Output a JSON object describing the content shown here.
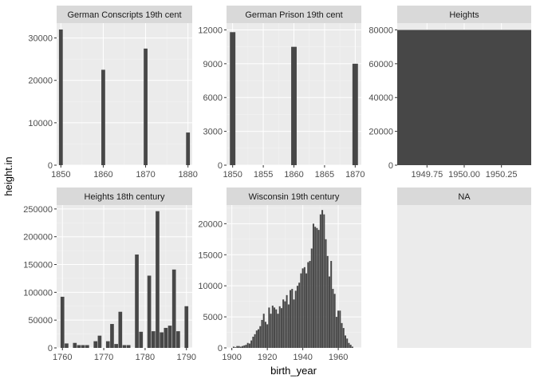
{
  "chart_data": {
    "type": "bar",
    "title": "",
    "xlabel": "birth_year",
    "ylabel": "height.in",
    "grid": true,
    "legend": "none",
    "colors": {
      "bar": "#474747",
      "panel_bg": "#ebebeb",
      "strip_bg": "#d9d9d9",
      "grid_major": "#ffffff",
      "grid_minor": "#f4f4f4"
    },
    "panels": [
      {
        "name": "German Conscripts 19th cent",
        "xlim": [
          1849,
          1881
        ],
        "ylim": [
          0,
          33500
        ],
        "xticks": [
          1850,
          1860,
          1870,
          1880
        ],
        "xtick_labels": [
          "1850",
          "1860",
          "1870",
          "1880"
        ],
        "yticks": [
          0,
          10000,
          20000,
          30000
        ],
        "ytick_labels": [
          "0",
          "10000",
          "20000",
          "30000"
        ],
        "bar_width": 0.9,
        "x": [
          1850,
          1860,
          1870,
          1880
        ],
        "values": [
          32000,
          22500,
          27500,
          7700
        ]
      },
      {
        "name": "German Prison 19th cent",
        "xlim": [
          1849,
          1871
        ],
        "ylim": [
          0,
          12600
        ],
        "xticks": [
          1850,
          1855,
          1860,
          1865,
          1870
        ],
        "xtick_labels": [
          "1850",
          "1855",
          "1860",
          "1865",
          "1870"
        ],
        "yticks": [
          0,
          3000,
          6000,
          9000,
          12000
        ],
        "ytick_labels": [
          "0",
          "3000",
          "6000",
          "9000",
          "12000"
        ],
        "bar_width": 0.9,
        "x": [
          1850,
          1860,
          1870
        ],
        "values": [
          11800,
          10500,
          9000
        ]
      },
      {
        "name": "Heights",
        "xlim": [
          1949.55,
          1950.45
        ],
        "ylim": [
          0,
          84000
        ],
        "xticks": [
          1949.75,
          1950.0,
          1950.25
        ],
        "xtick_labels": [
          "1949.75",
          "1950.00",
          "1950.25"
        ],
        "yticks": [
          0,
          20000,
          40000,
          60000,
          80000
        ],
        "ytick_labels": [
          "0",
          "20000",
          "40000",
          "60000",
          "80000"
        ],
        "bar_width": 0.9,
        "x": [
          1950
        ],
        "values": [
          80000
        ]
      },
      {
        "name": "Heights 18th century",
        "xlim": [
          1758.6,
          1791.4
        ],
        "ylim": [
          0,
          257000
        ],
        "xticks": [
          1760,
          1770,
          1780,
          1790
        ],
        "xtick_labels": [
          "1760",
          "1770",
          "1780",
          "1790"
        ],
        "yticks": [
          0,
          50000,
          100000,
          150000,
          200000,
          250000
        ],
        "ytick_labels": [
          "0",
          "50000",
          "100000",
          "150000",
          "200000",
          "250000"
        ],
        "bar_width": 0.9,
        "x": [
          1760,
          1761,
          1763,
          1764,
          1765,
          1766,
          1768,
          1769,
          1771,
          1772,
          1773,
          1774,
          1775,
          1776,
          1778,
          1779,
          1781,
          1782,
          1783,
          1784,
          1785,
          1786,
          1787,
          1788,
          1790
        ],
        "values": [
          92000,
          8000,
          9000,
          5000,
          5000,
          5000,
          12000,
          22000,
          12000,
          43000,
          7000,
          65000,
          5000,
          5000,
          168000,
          29000,
          130000,
          30000,
          246000,
          28000,
          36000,
          40000,
          141000,
          30000,
          75000
        ]
      },
      {
        "name": "Wisconsin 19th century",
        "xlim": [
          1897,
          1973
        ],
        "ylim": [
          0,
          23000
        ],
        "xticks": [
          1900,
          1920,
          1940,
          1960
        ],
        "xtick_labels": [
          "1900",
          "1920",
          "1940",
          "1960"
        ],
        "yticks": [
          0,
          5000,
          10000,
          15000,
          20000
        ],
        "ytick_labels": [
          "0",
          "5000",
          "10000",
          "15000",
          "20000"
        ],
        "bar_width": 0.9,
        "x": [
          1901,
          1902,
          1903,
          1904,
          1905,
          1906,
          1907,
          1908,
          1909,
          1910,
          1911,
          1912,
          1913,
          1914,
          1915,
          1916,
          1917,
          1918,
          1919,
          1920,
          1921,
          1922,
          1923,
          1924,
          1925,
          1926,
          1927,
          1928,
          1929,
          1930,
          1931,
          1932,
          1933,
          1934,
          1935,
          1936,
          1937,
          1938,
          1939,
          1940,
          1941,
          1942,
          1943,
          1944,
          1945,
          1946,
          1947,
          1948,
          1949,
          1950,
          1951,
          1952,
          1953,
          1954,
          1955,
          1956,
          1957,
          1958,
          1959,
          1960,
          1961,
          1962,
          1963,
          1964,
          1965,
          1966,
          1967,
          1968
        ],
        "values": [
          200,
          100,
          300,
          300,
          200,
          300,
          400,
          500,
          800,
          700,
          1200,
          1800,
          2200,
          2800,
          3000,
          3500,
          4500,
          5500,
          4200,
          3800,
          6500,
          5500,
          6800,
          6500,
          6200,
          5500,
          6700,
          6400,
          7800,
          7500,
          8500,
          7000,
          9300,
          9500,
          7800,
          9200,
          10000,
          10500,
          12000,
          12800,
          13000,
          12000,
          13800,
          14000,
          16000,
          20000,
          19500,
          19300,
          19000,
          21500,
          22200,
          21500,
          17500,
          14800,
          11500,
          14000,
          9500,
          8700,
          5000,
          6000,
          6000,
          4000,
          3200,
          2000,
          1500,
          800,
          500,
          200
        ]
      },
      {
        "name": "NA",
        "empty": true
      }
    ]
  }
}
